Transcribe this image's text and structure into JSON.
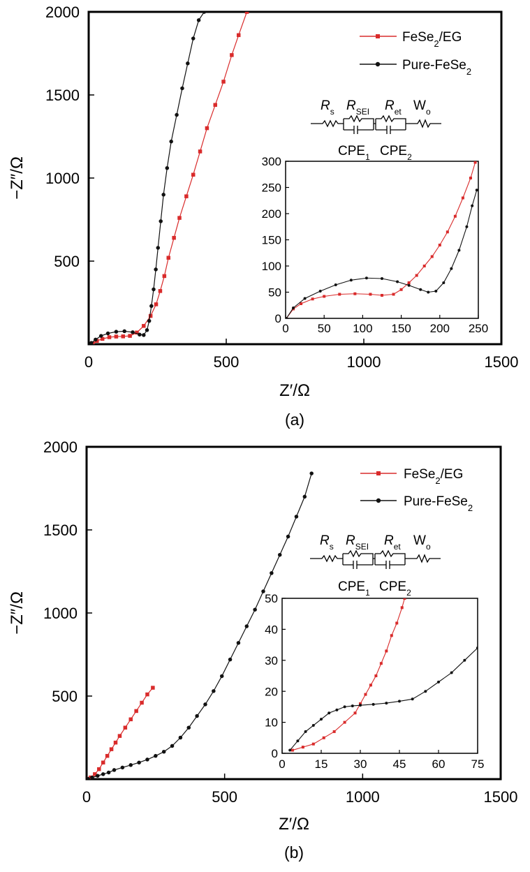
{
  "chart_data": [
    {
      "panel": "(a)",
      "type": "line",
      "xlabel": "Z′/Ω",
      "ylabel": "−Z″/Ω",
      "xlim": [
        0,
        1500
      ],
      "ylim": [
        0,
        2000
      ],
      "xticks": [
        "0",
        "500",
        "1000",
        "1500"
      ],
      "yticks": [
        "500",
        "1000",
        "1500",
        "2000"
      ],
      "legend": [
        "FeSe2/EG",
        "Pure-FeSe2"
      ],
      "series": [
        {
          "name": "FeSe2/EG",
          "color": "#d92b2b",
          "marker": "square",
          "x": [
            15,
            30,
            50,
            75,
            100,
            125,
            150,
            175,
            200,
            225,
            245,
            260,
            275,
            290,
            310,
            330,
            355,
            380,
            405,
            430,
            460,
            490,
            520,
            545,
            575
          ],
          "y": [
            5,
            20,
            32,
            42,
            46,
            47,
            50,
            70,
            110,
            170,
            240,
            320,
            410,
            520,
            640,
            760,
            890,
            1020,
            1160,
            1300,
            1440,
            1580,
            1740,
            1860,
            2000
          ]
        },
        {
          "name": "Pure-FeSe2",
          "color": "#111111",
          "marker": "circle",
          "x": [
            10,
            25,
            45,
            70,
            100,
            130,
            160,
            185,
            200,
            212,
            220,
            228,
            236,
            244,
            252,
            262,
            272,
            285,
            300,
            320,
            340,
            360,
            380,
            400,
            420
          ],
          "y": [
            8,
            28,
            50,
            65,
            75,
            78,
            72,
            58,
            55,
            85,
            140,
            230,
            330,
            450,
            580,
            740,
            900,
            1060,
            1220,
            1380,
            1540,
            1690,
            1840,
            1950,
            2000
          ]
        }
      ],
      "inset": {
        "xlim": [
          0,
          250
        ],
        "ylim": [
          0,
          300
        ],
        "xticks": [
          "0",
          "50",
          "100",
          "150",
          "200",
          "250"
        ],
        "yticks": [
          "0",
          "50",
          "100",
          "150",
          "200",
          "250",
          "300"
        ],
        "series": [
          {
            "name": "FeSe2/EG",
            "x": [
              1,
              10,
              20,
              35,
              50,
              70,
              90,
              110,
              125,
              140,
              150,
              160,
              170,
              180,
              190,
              200,
              210,
              220,
              230,
              240,
              246
            ],
            "y": [
              0,
              18,
              28,
              37,
              42,
              46,
              47,
              46,
              44,
              46,
              55,
              68,
              82,
              100,
              118,
              140,
              165,
              195,
              230,
              268,
              298
            ]
          },
          {
            "name": "Pure-FeSe2",
            "x": [
              1,
              10,
              25,
              45,
              65,
              85,
              105,
              125,
              145,
              160,
              175,
              185,
              195,
              205,
              215,
              225,
              235,
              242,
              248
            ],
            "y": [
              0,
              20,
              38,
              52,
              64,
              73,
              77,
              76,
              70,
              63,
              55,
              50,
              52,
              68,
              95,
              130,
              175,
              215,
              245
            ]
          }
        ]
      },
      "circuit": {
        "rs": "R",
        "rs_sub": "s",
        "rsei": "R",
        "rsei_sub": "SEI",
        "ret": "R",
        "ret_sub": "et",
        "wo": "W",
        "wo_sub": "o",
        "cpe1": "CPE",
        "cpe1_sub": "1",
        "cpe2": "CPE",
        "cpe2_sub": "2"
      }
    },
    {
      "panel": "(b)",
      "type": "line",
      "xlabel": "Z′/Ω",
      "ylabel": "−Z″/Ω",
      "xlim": [
        0,
        1500
      ],
      "ylim": [
        0,
        2000
      ],
      "xticks": [
        "0",
        "500",
        "1000",
        "1500"
      ],
      "yticks": [
        "500",
        "1000",
        "1500",
        "2000"
      ],
      "legend": [
        "FeSe2/EG",
        "Pure-FeSe2"
      ],
      "series": [
        {
          "name": "FeSe2/EG",
          "color": "#d92b2b",
          "marker": "square",
          "x": [
            5,
            15,
            30,
            45,
            60,
            75,
            90,
            105,
            120,
            140,
            160,
            180,
            200,
            220,
            240
          ],
          "y": [
            2,
            10,
            30,
            60,
            100,
            140,
            180,
            220,
            260,
            310,
            360,
            410,
            460,
            510,
            550
          ]
        },
        {
          "name": "Pure-FeSe2",
          "color": "#111111",
          "marker": "circle",
          "x": [
            5,
            20,
            40,
            60,
            80,
            100,
            130,
            160,
            190,
            220,
            250,
            280,
            310,
            340,
            370,
            400,
            430,
            460,
            490,
            520,
            550,
            580,
            610,
            640,
            670,
            700,
            730,
            760,
            790,
            815
          ],
          "y": [
            2,
            10,
            20,
            30,
            40,
            55,
            70,
            85,
            100,
            118,
            140,
            165,
            200,
            250,
            310,
            380,
            450,
            530,
            620,
            720,
            820,
            920,
            1020,
            1130,
            1240,
            1350,
            1460,
            1580,
            1700,
            1840
          ]
        }
      ],
      "inset": {
        "xlim": [
          0,
          75
        ],
        "ylim": [
          0,
          50
        ],
        "xticks": [
          "0",
          "15",
          "30",
          "45",
          "60",
          "75"
        ],
        "yticks": [
          "0",
          "10",
          "20",
          "30",
          "40",
          "50"
        ],
        "series": [
          {
            "name": "FeSe2/EG",
            "x": [
              4,
              8,
              12,
              16,
              20,
              24,
              28,
              30,
              32,
              34,
              36,
              38,
              40,
              42,
              44,
              46,
              47
            ],
            "y": [
              1,
              2,
              3,
              5,
              7,
              10,
              13,
              16,
              19,
              22,
              25,
              29,
              33,
              38,
              42,
              47,
              50
            ]
          },
          {
            "name": "Pure-FeSe2",
            "x": [
              3,
              6,
              9,
              12,
              15,
              18,
              21,
              24,
              27,
              30,
              35,
              40,
              45,
              50,
              55,
              60,
              65,
              70,
              75
            ],
            "y": [
              1,
              4,
              7,
              9,
              11,
              13,
              14,
              15,
              15.3,
              15.5,
              15.8,
              16.2,
              16.8,
              17.5,
              20,
              23,
              26,
              30,
              34
            ]
          }
        ]
      },
      "circuit": {
        "rs": "R",
        "rs_sub": "s",
        "rsei": "R",
        "rsei_sub": "SEI",
        "ret": "R",
        "ret_sub": "et",
        "wo": "W",
        "wo_sub": "o",
        "cpe1": "CPE",
        "cpe1_sub": "1",
        "cpe2": "CPE",
        "cpe2_sub": "2"
      }
    }
  ],
  "legend_labels": {
    "eg_main": "FeSe",
    "eg_sub": "2",
    "eg_tail": "/EG",
    "pure_main": "Pure-FeSe",
    "pure_sub": "2"
  }
}
